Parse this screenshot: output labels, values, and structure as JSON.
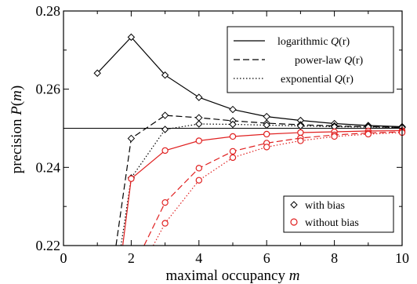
{
  "chart_data": {
    "type": "line",
    "xlabel": "maximal occupancy m",
    "xlabel_main": "maximal occupancy ",
    "xlabel_var": "m",
    "ylabel": "precision P(m)",
    "ylabel_main": "precision ",
    "ylabel_var": "P",
    "ylabel_paren_open": "(",
    "ylabel_arg": "m",
    "ylabel_paren_close": ")",
    "xlim": [
      0,
      10
    ],
    "ylim": [
      0.22,
      0.28
    ],
    "xticks": [
      0,
      2,
      4,
      6,
      8,
      10
    ],
    "yticks": [
      0.22,
      0.24,
      0.26,
      0.28
    ],
    "ytick_labels": [
      "0.22",
      "0.24",
      "0.26",
      "0.28"
    ],
    "xtick_labels": [
      "0",
      "2",
      "4",
      "6",
      "8",
      "10"
    ],
    "reference_line_y": 0.25,
    "grid": false,
    "legend_lines_position": "top-right",
    "legend_markers_position": "bottom-right",
    "legend_lines": [
      {
        "style": "solid",
        "label_main": "logarithmic ",
        "label_var": "Q",
        "label_rest": "(r)"
      },
      {
        "style": "dashed",
        "label_main": "power-law ",
        "label_var": "Q",
        "label_rest": "(r)"
      },
      {
        "style": "dotted",
        "label_main": "exponential ",
        "label_var": "Q",
        "label_rest": "(r)"
      }
    ],
    "legend_markers": [
      {
        "marker": "diamond",
        "color": "#000000",
        "label": "with bias"
      },
      {
        "marker": "circle",
        "color": "#e02020",
        "label": "without bias"
      }
    ],
    "series": [
      {
        "group": "with bias",
        "style": "solid",
        "color": "#000000",
        "marker": "diamond",
        "x": [
          1,
          2,
          3,
          4,
          5,
          6,
          7,
          8,
          9,
          10
        ],
        "y": [
          0.2641,
          0.2733,
          0.2636,
          0.2579,
          0.2548,
          0.253,
          0.252,
          0.2512,
          0.2507,
          0.2504
        ]
      },
      {
        "group": "with bias",
        "style": "dashed",
        "color": "#000000",
        "marker": "diamond",
        "x": [
          1.55,
          2,
          3,
          4,
          5,
          6,
          7,
          8,
          9,
          10
        ],
        "y": [
          0.22,
          0.2474,
          0.2533,
          0.2527,
          0.2519,
          0.2513,
          0.2509,
          0.2506,
          0.2504,
          0.2502
        ]
      },
      {
        "group": "with bias",
        "style": "dotted",
        "color": "#000000",
        "marker": "diamond",
        "x": [
          1.7,
          2,
          3,
          4,
          5,
          6,
          7,
          8,
          9,
          10
        ],
        "y": [
          0.22,
          0.2373,
          0.2497,
          0.2511,
          0.251,
          0.2508,
          0.2506,
          0.2504,
          0.2503,
          0.2502
        ]
      },
      {
        "group": "without bias",
        "style": "solid",
        "color": "#e02020",
        "marker": "circle",
        "x": [
          1.75,
          2,
          3,
          4,
          5,
          6,
          7,
          8,
          9,
          10
        ],
        "y": [
          0.22,
          0.2371,
          0.2443,
          0.2468,
          0.2479,
          0.2485,
          0.2489,
          0.2491,
          0.2493,
          0.2494
        ]
      },
      {
        "group": "without bias",
        "style": "dashed",
        "color": "#e02020",
        "marker": "circle",
        "x": [
          2.38,
          3,
          4,
          5,
          6,
          7,
          8,
          9,
          10
        ],
        "y": [
          0.22,
          0.231,
          0.2398,
          0.2441,
          0.2462,
          0.2475,
          0.2483,
          0.2488,
          0.2491
        ]
      },
      {
        "group": "without bias",
        "style": "dotted",
        "color": "#e02020",
        "marker": "circle",
        "x": [
          2.65,
          3,
          4,
          5,
          6,
          7,
          8,
          9,
          10
        ],
        "y": [
          0.22,
          0.2257,
          0.2367,
          0.2425,
          0.2452,
          0.2468,
          0.2479,
          0.2485,
          0.2489
        ]
      }
    ]
  }
}
